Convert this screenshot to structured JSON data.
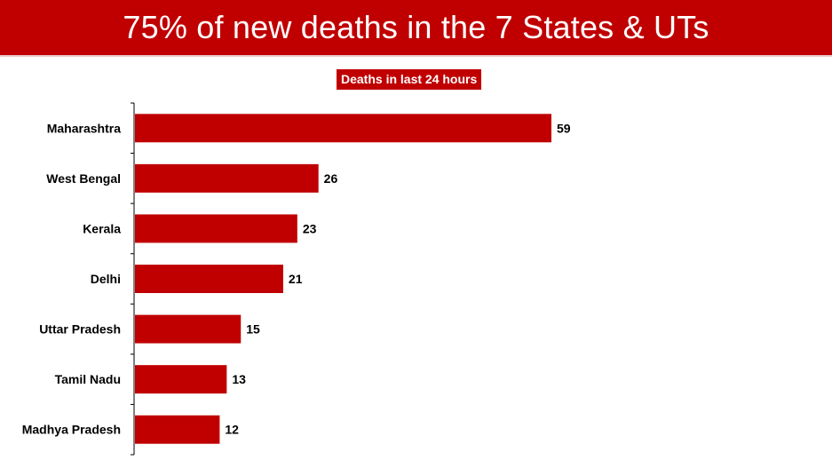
{
  "header": {
    "title": "75% of new deaths in the 7 States & UTs"
  },
  "colors": {
    "accent": "#c00000",
    "bar": "#c00000",
    "axis": "#000000"
  },
  "chart_data": {
    "type": "bar",
    "orientation": "horizontal",
    "title": "Deaths in last 24 hours",
    "categories": [
      "Maharashtra",
      "West Bengal",
      "Kerala",
      "Delhi",
      "Uttar Pradesh",
      "Tamil Nadu",
      "Madhya Pradesh"
    ],
    "values": [
      59,
      26,
      23,
      21,
      15,
      13,
      12
    ],
    "xlim": [
      0,
      60
    ],
    "grid": false,
    "legend": "none",
    "data_labels": true
  }
}
